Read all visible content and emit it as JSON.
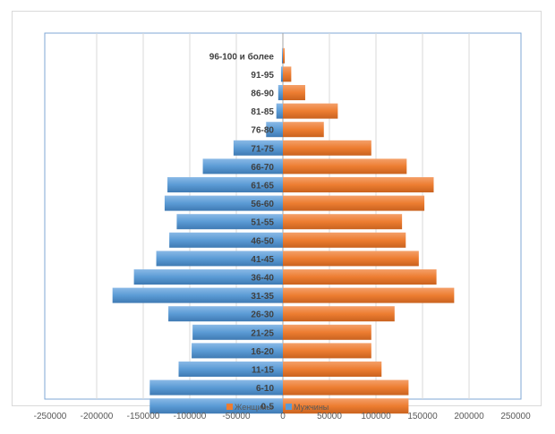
{
  "chart_data": {
    "type": "bar",
    "orientation": "horizontal",
    "stacked_diverging": true,
    "categories": [
      "0-5",
      "6-10",
      "11-15",
      "16-20",
      "21-25",
      "26-30",
      "31-35",
      "36-40",
      "41-45",
      "46-50",
      "51-55",
      "56-60",
      "61-65",
      "66-70",
      "71-75",
      "76-80",
      "81-85",
      "86-90",
      "91-95",
      "96-100 и более"
    ],
    "series": [
      {
        "name": "Женщины",
        "color": "#ed7d31",
        "values": [
          135000,
          135000,
          106000,
          95000,
          95000,
          120000,
          184000,
          165000,
          146000,
          132000,
          128000,
          152000,
          162000,
          133000,
          95000,
          44000,
          59000,
          24000,
          9000,
          2000
        ]
      },
      {
        "name": "Мужчины",
        "color": "#5b9bd5",
        "values": [
          -143000,
          -143000,
          -112000,
          -98000,
          -97000,
          -123000,
          -183000,
          -160000,
          -136000,
          -122000,
          -114000,
          -127000,
          -124000,
          -86000,
          -53000,
          -18000,
          -7000,
          -5000,
          -2000,
          -1000
        ]
      }
    ],
    "xlim": [
      -250000,
      250000
    ],
    "xticks": [
      -250000,
      -200000,
      -150000,
      -100000,
      -50000,
      0,
      50000,
      100000,
      150000,
      200000,
      250000
    ],
    "grid": true,
    "legend_position": "bottom"
  }
}
